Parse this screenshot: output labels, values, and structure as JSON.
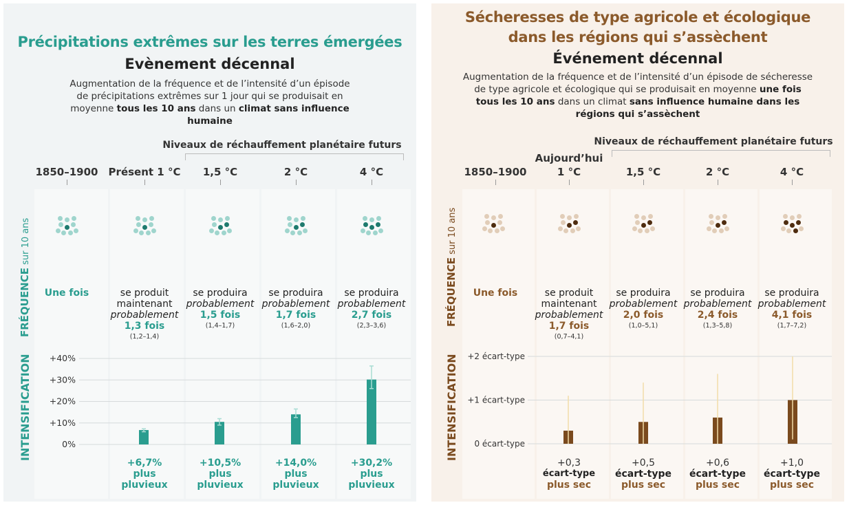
{
  "colors": {
    "teal": "#2a9d8f",
    "teal_light": "#9fd5cd",
    "teal_dark": "#1e7a6e",
    "brown": "#7a4a1e",
    "brown_light": "#e1cdb8",
    "brown_dark": "#4e2c0f",
    "brown_title": "#8b5a2b",
    "error_teal": "#a8dcd3",
    "error_brown": "#f2dca8"
  },
  "chart_data": [
    {
      "type": "bar",
      "title": "Précipitations extrêmes sur les terres émergées",
      "subtitle": "Evènement décennal",
      "description_parts": [
        "Augmentation de la fréquence et de  l’intensité d’un épisode de précipitations extrêmes sur 1 jour qui se produisait en moyenne ",
        "tous les 10 ans",
        " dans un ",
        "climat sans influence humaine"
      ],
      "future_header": "Niveaux de réchauffement planétaire futurs",
      "categories": [
        "1850–1900",
        "Présent 1 °C",
        "1,5 °C",
        "2 °C",
        "4 °C"
      ],
      "frequency_axis_label": [
        "FRÉQUENCE",
        " sur 10 ans"
      ],
      "frequency": [
        {
          "dots_highlight": 1,
          "text": "Une fois"
        },
        {
          "dots_highlight": 1.3,
          "line1": "se produit",
          "line2": "maintenant",
          "italic": "probablement",
          "value": "1,3 fois",
          "range": "(1,2–1,4)"
        },
        {
          "dots_highlight": 1.5,
          "line1": "se produira",
          "italic": "probablement",
          "value": "1,5 fois",
          "range": "(1,4–1,7)"
        },
        {
          "dots_highlight": 1.7,
          "line1": "se produira",
          "italic": "probablement",
          "value": "1,7 fois",
          "range": "(1,6–2,0)"
        },
        {
          "dots_highlight": 2.7,
          "line1": "se produira",
          "italic": "probablement",
          "value": "2,7 fois",
          "range": "(2,3–3,6)"
        }
      ],
      "intensification_axis_label": "INTENSIFICATION",
      "yticks": [
        "+40%",
        "+30%",
        "+20%",
        "+10%",
        "0%"
      ],
      "ytick_values": [
        40,
        30,
        20,
        10,
        0
      ],
      "ylim": [
        0,
        40
      ],
      "series": [
        {
          "values": [
            null,
            6.7,
            10.5,
            14.0,
            30.2
          ],
          "error_low": [
            null,
            5.9,
            9.0,
            12.5,
            26.0
          ],
          "error_high": [
            null,
            7.3,
            12.0,
            16.5,
            36.5
          ]
        }
      ],
      "bar_labels": [
        null,
        [
          "+6,7%",
          "plus",
          "pluvieux"
        ],
        [
          "+10,5%",
          "plus",
          "pluvieux"
        ],
        [
          "+14,0%",
          "plus",
          "pluvieux"
        ],
        [
          "+30,2%",
          "plus",
          "pluvieux"
        ]
      ]
    },
    {
      "type": "bar",
      "title_lines": [
        "Sécheresses de type agricole et écologique",
        "dans les régions qui s’assèchent"
      ],
      "subtitle": "Événement décennal",
      "description_parts": [
        "Augmentation de la fréquence et de  l’intensité d’un épisode de sécheresse de type agricole et écologique qui se produisait en moyenne ",
        "une fois tous les 10 ans",
        " dans un climat ",
        "sans influence humaine dans les régions qui s’assèchent"
      ],
      "future_header": "Niveaux de réchauffement planétaire futurs",
      "today_header": "Aujourd’hui",
      "categories": [
        "1850–1900",
        "1 °C",
        "1,5 °C",
        "2 °C",
        "4 °C"
      ],
      "frequency_axis_label": [
        "FRÉQUENCE",
        " sur 10 ans"
      ],
      "frequency": [
        {
          "dots_highlight": 1,
          "text": "Une fois"
        },
        {
          "dots_highlight": 1.7,
          "line1": "se produit",
          "line2": "maintenant",
          "italic": "probablement",
          "value": "1,7 fois",
          "range": "(0,7–4,1)"
        },
        {
          "dots_highlight": 2.0,
          "line1": "se produira",
          "italic": "probablement",
          "value": "2,0 fois",
          "range": "(1,0–5,1)"
        },
        {
          "dots_highlight": 2.4,
          "line1": "se produira",
          "italic": "probablement",
          "value": "2,4 fois",
          "range": "(1,3–5,8)"
        },
        {
          "dots_highlight": 4.1,
          "line1": "se produira",
          "italic": "probablement",
          "value": "4,1 fois",
          "range": "(1,7–7,2)"
        }
      ],
      "intensification_axis_label": "INTENSIFICATION",
      "yticks": [
        "+2 écart-type",
        "+1 écart-type",
        "0 écart-type"
      ],
      "ytick_values": [
        2,
        1,
        0
      ],
      "ylim": [
        0,
        2
      ],
      "series": [
        {
          "values": [
            null,
            0.3,
            0.5,
            0.6,
            1.0
          ],
          "error_low": [
            null,
            0.0,
            0.0,
            0.0,
            0.1
          ],
          "error_high": [
            null,
            1.1,
            1.4,
            1.6,
            2.0
          ]
        }
      ],
      "bar_labels": [
        null,
        [
          "+0,3",
          "écart-type",
          "plus sec"
        ],
        [
          "+0,5",
          "écart-type",
          "plus sec"
        ],
        [
          "+0,6",
          "écart-type",
          "plus sec"
        ],
        [
          "+1,0",
          "écart-type",
          "plus sec"
        ]
      ]
    }
  ]
}
